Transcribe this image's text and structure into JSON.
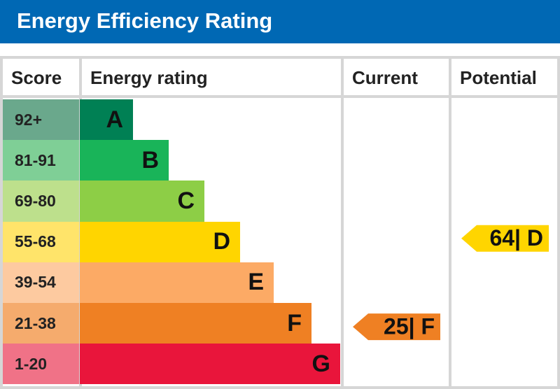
{
  "header": {
    "title": "Energy Efficiency Rating"
  },
  "columns": [
    "Score",
    "Energy rating",
    "Current",
    "Potential"
  ],
  "bands": [
    {
      "score": "92+",
      "letter": "A",
      "color": "#008054",
      "score_color": "#6aa88c"
    },
    {
      "score": "81-91",
      "letter": "B",
      "color": "#19b459",
      "score_color": "#7fcf96"
    },
    {
      "score": "69-80",
      "letter": "C",
      "color": "#8dce46",
      "score_color": "#bde08c"
    },
    {
      "score": "55-68",
      "letter": "D",
      "color": "#ffd500",
      "score_color": "#ffe46a"
    },
    {
      "score": "39-54",
      "letter": "E",
      "color": "#fcaa65",
      "score_color": "#fdcaa0"
    },
    {
      "score": "21-38",
      "letter": "F",
      "color": "#ef8023",
      "score_color": "#f5ab6d"
    },
    {
      "score": "1-20",
      "letter": "G",
      "color": "#e9153b",
      "score_color": "#f07287"
    }
  ],
  "current": {
    "label": "25| F",
    "band": 5
  },
  "potential": {
    "label": "64| D",
    "band": 3
  }
}
